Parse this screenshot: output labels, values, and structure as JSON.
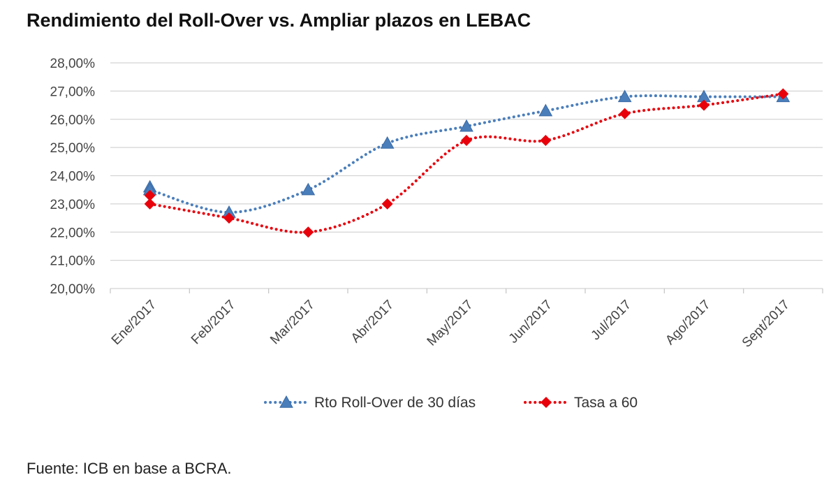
{
  "chart_data": {
    "type": "line",
    "title": "Rendimiento del Roll-Over vs. Ampliar plazos en LEBAC",
    "source": "Fuente: ICB en base a BCRA.",
    "categories": [
      "Ene/2017",
      "Feb/2017",
      "Mar/2017",
      "Abr/2017",
      "May/2017",
      "Jun/2017",
      "Jul/2017",
      "Ago/2017",
      "Sept/2017"
    ],
    "ylim": [
      20,
      28
    ],
    "yticks": [
      "20,00%",
      "21,00%",
      "22,00%",
      "23,00%",
      "24,00%",
      "25,00%",
      "26,00%",
      "27,00%",
      "28,00%"
    ],
    "grid": true,
    "legend_position": "bottom",
    "series": [
      {
        "name": "Rto Roll-Over de 30 días",
        "color": "#4A7EBB",
        "marker": "triangle",
        "line_style": "dotted",
        "values": [
          23.5,
          22.7,
          23.5,
          25.15,
          25.75,
          26.3,
          26.8,
          26.8,
          26.8
        ],
        "extra_points": [
          {
            "index": 0,
            "value": 23.6
          }
        ]
      },
      {
        "name": "Tasa a 60",
        "color": "#E8000B",
        "marker": "diamond",
        "line_style": "dotted",
        "values": [
          23.0,
          22.5,
          22.0,
          23.0,
          25.25,
          25.25,
          26.2,
          26.5,
          26.9
        ],
        "extra_points": [
          {
            "index": 0,
            "value": 23.3
          }
        ]
      }
    ]
  }
}
